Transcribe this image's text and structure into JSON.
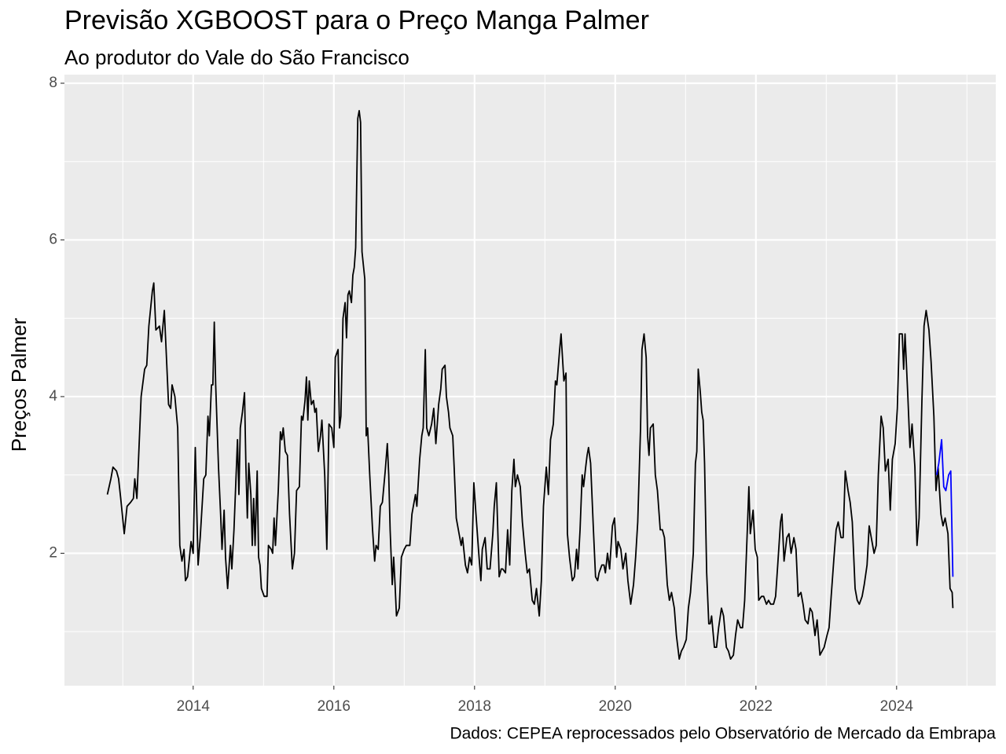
{
  "chart_data": {
    "type": "line",
    "title": "Previsão XGBOOST para o Preço Manga Palmer",
    "subtitle": "Ao produtor do Vale do São Francisco",
    "y_label": "Preços Palmer",
    "caption": "Dados: CEPEA reprocessados pelo Observatório de Mercado da Embrapa",
    "xlim": [
      2012.17,
      2025.41
    ],
    "ylim": [
      0.31,
      8.11
    ],
    "xticks": [
      2014,
      2016,
      2018,
      2020,
      2022,
      2024
    ],
    "yticks": [
      2,
      4,
      6,
      8
    ],
    "x_minor_breaks": [
      2013,
      2015,
      2017,
      2019,
      2021,
      2023,
      2025
    ],
    "y_minor_breaks": [
      1,
      3,
      5,
      7
    ],
    "grid": true,
    "series": [
      {
        "color": "#000000",
        "x": [
          2012.78,
          2012.83,
          2012.86,
          2012.91,
          2012.94,
          2012.97,
          2013.02,
          2013.06,
          2013.11,
          2013.15,
          2013.17,
          2013.2,
          2013.23,
          2013.26,
          2013.31,
          2013.34,
          2013.37,
          2013.42,
          2013.44,
          2013.47,
          2013.52,
          2013.55,
          2013.59,
          2013.62,
          2013.65,
          2013.68,
          2013.7,
          2013.74,
          2013.78,
          2013.81,
          2013.84,
          2013.87,
          2013.89,
          2013.92,
          2013.97,
          2014,
          2014.03,
          2014.07,
          2014.1,
          2014.15,
          2014.18,
          2014.21,
          2014.23,
          2014.26,
          2014.28,
          2014.3,
          2014.32,
          2014.36,
          2014.39,
          2014.41,
          2014.44,
          2014.46,
          2014.49,
          2014.53,
          2014.55,
          2014.58,
          2014.63,
          2014.65,
          2014.67,
          2014.7,
          2014.73,
          2014.75,
          2014.77,
          2014.79,
          2014.82,
          2014.84,
          2014.86,
          2014.88,
          2014.91,
          2014.93,
          2014.95,
          2014.97,
          2015.01,
          2015.05,
          2015.07,
          2015.11,
          2015.13,
          2015.15,
          2015.17,
          2015.21,
          2015.24,
          2015.26,
          2015.28,
          2015.31,
          2015.34,
          2015.37,
          2015.41,
          2015.44,
          2015.47,
          2015.51,
          2015.54,
          2015.56,
          2015.59,
          2015.61,
          2015.63,
          2015.65,
          2015.68,
          2015.71,
          2015.73,
          2015.75,
          2015.78,
          2015.81,
          2015.83,
          2015.87,
          2015.9,
          2015.93,
          2015.97,
          2016,
          2016.02,
          2016.06,
          2016.08,
          2016.1,
          2016.13,
          2016.16,
          2016.18,
          2016.2,
          2016.22,
          2016.25,
          2016.27,
          2016.29,
          2016.31,
          2016.34,
          2016.36,
          2016.38,
          2016.4,
          2016.44,
          2016.46,
          2016.48,
          2016.51,
          2016.55,
          2016.58,
          2016.6,
          2016.63,
          2016.66,
          2016.69,
          2016.73,
          2016.76,
          2016.78,
          2016.8,
          2016.83,
          2016.85,
          2016.87,
          2016.89,
          2016.93,
          2016.96,
          2017,
          2017.03,
          2017.08,
          2017.11,
          2017.13,
          2017.16,
          2017.18,
          2017.22,
          2017.25,
          2017.27,
          2017.3,
          2017.32,
          2017.35,
          2017.39,
          2017.42,
          2017.45,
          2017.49,
          2017.52,
          2017.54,
          2017.58,
          2017.6,
          2017.63,
          2017.65,
          2017.69,
          2017.71,
          2017.74,
          2017.78,
          2017.81,
          2017.83,
          2017.87,
          2017.9,
          2017.93,
          2017.96,
          2017.99,
          2018.02,
          2018.06,
          2018.09,
          2018.11,
          2018.15,
          2018.18,
          2018.22,
          2018.26,
          2018.28,
          2018.31,
          2018.35,
          2018.38,
          2018.4,
          2018.44,
          2018.47,
          2018.5,
          2018.53,
          2018.56,
          2018.58,
          2018.61,
          2018.65,
          2018.68,
          2018.72,
          2018.75,
          2018.78,
          2018.82,
          2018.85,
          2018.88,
          2018.92,
          2018.95,
          2018.98,
          2019.02,
          2019.05,
          2019.08,
          2019.12,
          2019.15,
          2019.17,
          2019.21,
          2019.23,
          2019.25,
          2019.27,
          2019.3,
          2019.32,
          2019.35,
          2019.39,
          2019.42,
          2019.45,
          2019.47,
          2019.5,
          2019.53,
          2019.55,
          2019.58,
          2019.6,
          2019.62,
          2019.65,
          2019.69,
          2019.72,
          2019.75,
          2019.77,
          2019.81,
          2019.84,
          2019.86,
          2019.89,
          2019.92,
          2019.96,
          2019.99,
          2020.02,
          2020.04,
          2020.08,
          2020.11,
          2020.15,
          2020.18,
          2020.22,
          2020.26,
          2020.29,
          2020.32,
          2020.36,
          2020.38,
          2020.41,
          2020.44,
          2020.46,
          2020.48,
          2020.5,
          2020.54,
          2020.57,
          2020.6,
          2020.64,
          2020.67,
          2020.7,
          2020.74,
          2020.77,
          2020.8,
          2020.84,
          2020.87,
          2020.91,
          2020.94,
          2020.97,
          2021.01,
          2021.04,
          2021.07,
          2021.11,
          2021.14,
          2021.16,
          2021.18,
          2021.21,
          2021.23,
          2021.25,
          2021.27,
          2021.3,
          2021.33,
          2021.35,
          2021.37,
          2021.41,
          2021.44,
          2021.47,
          2021.51,
          2021.54,
          2021.58,
          2021.61,
          2021.64,
          2021.68,
          2021.71,
          2021.74,
          2021.78,
          2021.81,
          2021.84,
          2021.88,
          2021.9,
          2021.92,
          2021.96,
          2021.99,
          2022.02,
          2022.04,
          2022.08,
          2022.11,
          2022.15,
          2022.18,
          2022.21,
          2022.25,
          2022.28,
          2022.31,
          2022.35,
          2022.37,
          2022.4,
          2022.44,
          2022.47,
          2022.5,
          2022.54,
          2022.57,
          2022.6,
          2022.64,
          2022.67,
          2022.7,
          2022.74,
          2022.77,
          2022.8,
          2022.84,
          2022.87,
          2022.91,
          2022.94,
          2022.97,
          2023.01,
          2023.04,
          2023.07,
          2023.11,
          2023.14,
          2023.17,
          2023.21,
          2023.24,
          2023.27,
          2023.31,
          2023.34,
          2023.37,
          2023.41,
          2023.44,
          2023.47,
          2023.51,
          2023.54,
          2023.58,
          2023.61,
          2023.64,
          2023.68,
          2023.71,
          2023.74,
          2023.78,
          2023.81,
          2023.84,
          2023.88,
          2023.91,
          2023.94,
          2023.98,
          2024.01,
          2024.04,
          2024.08,
          2024.1,
          2024.12,
          2024.16,
          2024.19,
          2024.22,
          2024.26,
          2024.29,
          2024.32,
          2024.36,
          2024.39,
          2024.42,
          2024.46,
          2024.49,
          2024.53,
          2024.56,
          2024.59,
          2024.63,
          2024.66,
          2024.69,
          2024.73,
          2024.76,
          2024.79,
          2024.8
        ],
        "values": [
          2.75,
          2.95,
          3.1,
          3.05,
          2.95,
          2.7,
          2.25,
          2.6,
          2.65,
          2.7,
          2.95,
          2.7,
          3.35,
          4.0,
          4.35,
          4.4,
          4.9,
          5.35,
          5.45,
          4.85,
          4.9,
          4.7,
          5.1,
          4.5,
          3.9,
          3.85,
          4.15,
          4.0,
          3.6,
          2.1,
          1.9,
          2.05,
          1.65,
          1.7,
          2.15,
          2.0,
          3.35,
          1.85,
          2.2,
          2.95,
          3.0,
          3.75,
          3.5,
          4.15,
          4.15,
          4.95,
          4.15,
          3.1,
          2.5,
          2.05,
          2.55,
          1.95,
          1.55,
          2.1,
          1.8,
          2.3,
          3.45,
          2.75,
          3.6,
          3.8,
          4.05,
          3.1,
          2.45,
          3.15,
          2.75,
          2.1,
          2.7,
          2.1,
          3.05,
          1.95,
          1.85,
          1.55,
          1.45,
          1.45,
          2.1,
          2.05,
          2.0,
          2.45,
          2.1,
          2.8,
          3.55,
          3.45,
          3.6,
          3.3,
          3.25,
          2.5,
          1.8,
          2.0,
          2.8,
          2.85,
          3.75,
          3.7,
          3.95,
          4.25,
          3.7,
          4.2,
          3.9,
          3.95,
          3.8,
          3.85,
          3.3,
          3.5,
          3.7,
          3.0,
          2.05,
          3.65,
          3.6,
          3.35,
          4.5,
          4.6,
          3.6,
          3.75,
          5.0,
          5.2,
          4.75,
          5.3,
          5.35,
          5.2,
          5.55,
          5.65,
          5.9,
          7.55,
          7.65,
          7.5,
          5.85,
          5.5,
          3.5,
          3.6,
          3.0,
          2.3,
          1.9,
          2.1,
          2.05,
          2.6,
          2.65,
          3.05,
          3.4,
          3.0,
          2.3,
          1.6,
          1.95,
          1.6,
          1.2,
          1.3,
          1.95,
          2.05,
          2.1,
          2.1,
          2.5,
          2.6,
          2.75,
          2.6,
          3.2,
          3.5,
          3.6,
          4.6,
          3.6,
          3.5,
          3.65,
          3.85,
          3.4,
          3.9,
          4.1,
          4.35,
          4.4,
          4.0,
          3.8,
          3.6,
          3.5,
          3.1,
          2.45,
          2.25,
          2.1,
          2.2,
          1.85,
          1.75,
          1.95,
          1.85,
          2.9,
          2.5,
          2.0,
          1.65,
          2.05,
          2.2,
          1.8,
          1.8,
          2.25,
          2.6,
          2.9,
          1.7,
          1.8,
          1.8,
          1.75,
          2.3,
          1.85,
          2.8,
          3.2,
          2.85,
          3.0,
          2.85,
          2.4,
          2.0,
          1.75,
          1.8,
          1.4,
          1.35,
          1.55,
          1.2,
          1.65,
          2.6,
          3.1,
          2.75,
          3.45,
          3.65,
          4.2,
          4.15,
          4.6,
          4.8,
          4.5,
          4.2,
          4.3,
          2.25,
          1.95,
          1.65,
          1.7,
          2.05,
          1.8,
          2.3,
          3.0,
          2.85,
          3.1,
          3.25,
          3.35,
          3.15,
          2.3,
          1.7,
          1.65,
          1.75,
          1.85,
          1.85,
          1.75,
          2.0,
          1.8,
          2.35,
          2.45,
          1.95,
          2.15,
          2.05,
          1.8,
          2.0,
          1.65,
          1.35,
          1.6,
          1.95,
          2.4,
          3.6,
          4.6,
          4.8,
          4.5,
          3.5,
          3.25,
          3.6,
          3.65,
          3.0,
          2.8,
          2.3,
          2.3,
          2.2,
          1.6,
          1.4,
          1.5,
          1.3,
          0.95,
          0.65,
          0.75,
          0.8,
          0.9,
          1.3,
          1.5,
          2.0,
          3.15,
          3.3,
          4.35,
          4.05,
          3.8,
          3.7,
          3.15,
          1.75,
          1.1,
          1.1,
          1.2,
          0.8,
          0.8,
          1.05,
          1.3,
          1.2,
          0.8,
          0.75,
          0.65,
          0.7,
          0.95,
          1.15,
          1.05,
          1.05,
          1.4,
          2.35,
          2.85,
          2.25,
          2.55,
          2.05,
          1.95,
          1.4,
          1.45,
          1.45,
          1.35,
          1.4,
          1.35,
          1.35,
          1.45,
          1.85,
          2.4,
          2.5,
          1.9,
          2.2,
          2.25,
          2.0,
          2.2,
          2.05,
          1.45,
          1.5,
          1.35,
          1.15,
          1.1,
          1.3,
          1.25,
          0.95,
          1.15,
          0.7,
          0.75,
          0.8,
          0.95,
          1.05,
          1.45,
          1.95,
          2.3,
          2.4,
          2.2,
          2.2,
          3.05,
          2.8,
          2.65,
          2.4,
          1.55,
          1.4,
          1.35,
          1.45,
          1.6,
          1.85,
          2.35,
          2.2,
          2.0,
          2.1,
          3.0,
          3.75,
          3.6,
          3.05,
          3.2,
          2.55,
          3.2,
          3.4,
          3.85,
          4.8,
          4.8,
          4.35,
          4.8,
          4.0,
          3.35,
          3.65,
          3.1,
          2.1,
          2.45,
          3.95,
          4.9,
          5.1,
          4.85,
          4.45,
          3.75,
          2.8,
          3.1,
          2.5,
          2.35,
          2.45,
          2.25,
          1.55,
          1.5,
          1.3
        ]
      },
      {
        "color": "#0000ff",
        "x": [
          2024.57,
          2024.6,
          2024.64,
          2024.67,
          2024.7,
          2024.74,
          2024.77,
          2024.8
        ],
        "values": [
          3.0,
          3.15,
          3.45,
          2.85,
          2.8,
          3.0,
          3.05,
          1.7
        ]
      }
    ]
  }
}
